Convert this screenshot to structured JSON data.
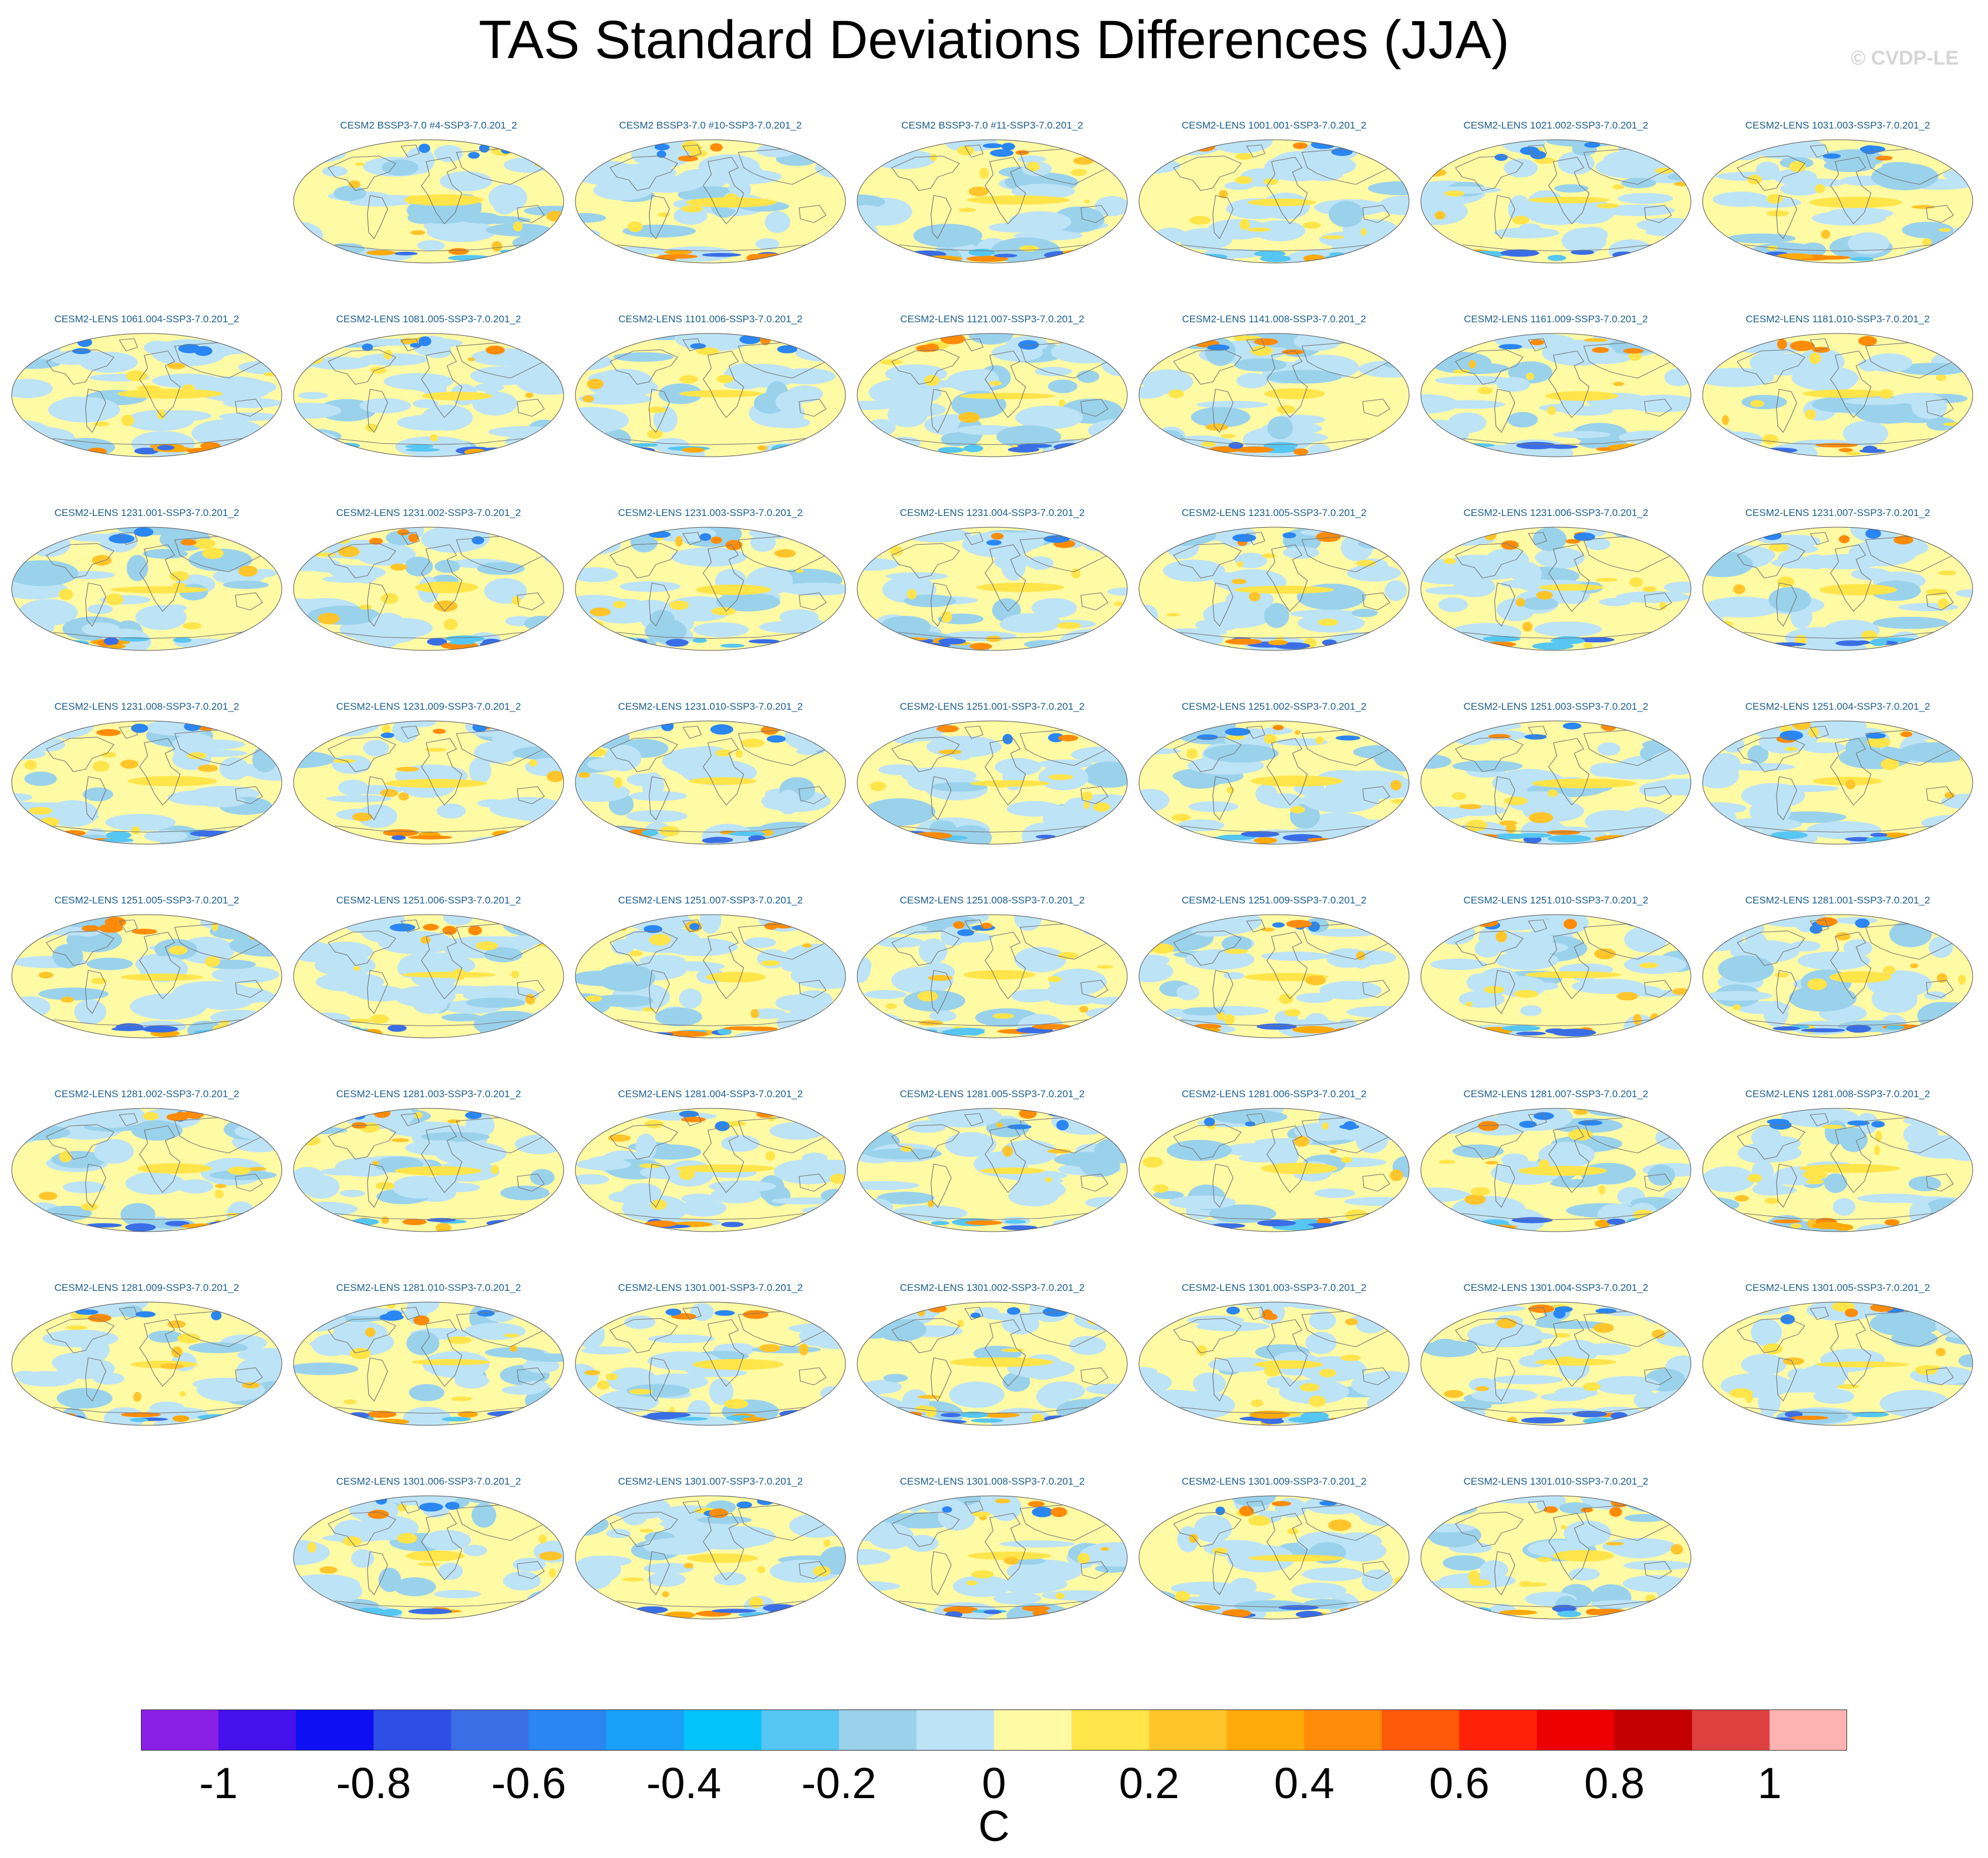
{
  "title": "TAS Standard Deviations Differences (JJA)",
  "watermark": "© CVDP-LE",
  "chart_data": {
    "type": "heatmap",
    "title": "TAS Standard Deviations Differences (JJA)",
    "variable": "TAS",
    "season": "JJA",
    "projection": "Robinson (global maps)",
    "units": "C",
    "colorbar": {
      "levels": [
        -1.1,
        -1.0,
        -0.9,
        -0.8,
        -0.7,
        -0.6,
        -0.5,
        -0.4,
        -0.3,
        -0.2,
        -0.1,
        0,
        0.1,
        0.2,
        0.3,
        0.4,
        0.5,
        0.6,
        0.7,
        0.8,
        0.9,
        1.0,
        1.1
      ],
      "tick_labels": [
        "-1",
        "-0.8",
        "-0.6",
        "-0.4",
        "-0.2",
        "0",
        "0.2",
        "0.4",
        "0.6",
        "0.8",
        "1"
      ],
      "tick_values": [
        -1,
        -0.8,
        -0.6,
        -0.4,
        -0.2,
        0,
        0.2,
        0.4,
        0.6,
        0.8,
        1
      ],
      "colors": [
        "#8a1fe6",
        "#4410ec",
        "#0c10f2",
        "#2e4ee6",
        "#3a6ee6",
        "#2a86f2",
        "#18a0f6",
        "#04c2fa",
        "#56c6f2",
        "#9ad2ec",
        "#bde3f6",
        "#fffaa4",
        "#ffe44a",
        "#ffc52a",
        "#ffaa08",
        "#ff8c08",
        "#ff5a08",
        "#ff2008",
        "#ec0000",
        "#c40000",
        "#de4040",
        "#ffb2b2"
      ]
    },
    "panels": [
      "CESM2 BSSP3-7.0 #4-SSP3-7.0.201_2",
      "CESM2 BSSP3-7.0 #10-SSP3-7.0.201_2",
      "CESM2 BSSP3-7.0 #11-SSP3-7.0.201_2",
      "CESM2-LENS 1001.001-SSP3-7.0.201_2",
      "CESM2-LENS 1021.002-SSP3-7.0.201_2",
      "CESM2-LENS 1031.003-SSP3-7.0.201_2",
      "CESM2-LENS 1061.004-SSP3-7.0.201_2",
      "CESM2-LENS 1081.005-SSP3-7.0.201_2",
      "CESM2-LENS 1101.006-SSP3-7.0.201_2",
      "CESM2-LENS 1121.007-SSP3-7.0.201_2",
      "CESM2-LENS 1141.008-SSP3-7.0.201_2",
      "CESM2-LENS 1161.009-SSP3-7.0.201_2",
      "CESM2-LENS 1181.010-SSP3-7.0.201_2",
      "CESM2-LENS 1231.001-SSP3-7.0.201_2",
      "CESM2-LENS 1231.002-SSP3-7.0.201_2",
      "CESM2-LENS 1231.003-SSP3-7.0.201_2",
      "CESM2-LENS 1231.004-SSP3-7.0.201_2",
      "CESM2-LENS 1231.005-SSP3-7.0.201_2",
      "CESM2-LENS 1231.006-SSP3-7.0.201_2",
      "CESM2-LENS 1231.007-SSP3-7.0.201_2",
      "CESM2-LENS 1231.008-SSP3-7.0.201_2",
      "CESM2-LENS 1231.009-SSP3-7.0.201_2",
      "CESM2-LENS 1231.010-SSP3-7.0.201_2",
      "CESM2-LENS 1251.001-SSP3-7.0.201_2",
      "CESM2-LENS 1251.002-SSP3-7.0.201_2",
      "CESM2-LENS 1251.003-SSP3-7.0.201_2",
      "CESM2-LENS 1251.004-SSP3-7.0.201_2",
      "CESM2-LENS 1251.005-SSP3-7.0.201_2",
      "CESM2-LENS 1251.006-SSP3-7.0.201_2",
      "CESM2-LENS 1251.007-SSP3-7.0.201_2",
      "CESM2-LENS 1251.008-SSP3-7.0.201_2",
      "CESM2-LENS 1251.009-SSP3-7.0.201_2",
      "CESM2-LENS 1251.010-SSP3-7.0.201_2",
      "CESM2-LENS 1281.001-SSP3-7.0.201_2",
      "CESM2-LENS 1281.002-SSP3-7.0.201_2",
      "CESM2-LENS 1281.003-SSP3-7.0.201_2",
      "CESM2-LENS 1281.004-SSP3-7.0.201_2",
      "CESM2-LENS 1281.005-SSP3-7.0.201_2",
      "CESM2-LENS 1281.006-SSP3-7.0.201_2",
      "CESM2-LENS 1281.007-SSP3-7.0.201_2",
      "CESM2-LENS 1281.008-SSP3-7.0.201_2",
      "CESM2-LENS 1281.009-SSP3-7.0.201_2",
      "CESM2-LENS 1281.010-SSP3-7.0.201_2",
      "CESM2-LENS 1301.001-SSP3-7.0.201_2",
      "CESM2-LENS 1301.002-SSP3-7.0.201_2",
      "CESM2-LENS 1301.003-SSP3-7.0.201_2",
      "CESM2-LENS 1301.004-SSP3-7.0.201_2",
      "CESM2-LENS 1301.005-SSP3-7.0.201_2",
      "CESM2-LENS 1301.006-SSP3-7.0.201_2",
      "CESM2-LENS 1301.007-SSP3-7.0.201_2",
      "CESM2-LENS 1301.008-SSP3-7.0.201_2",
      "CESM2-LENS 1301.009-SSP3-7.0.201_2",
      "CESM2-LENS 1301.010-SSP3-7.0.201_2"
    ]
  }
}
